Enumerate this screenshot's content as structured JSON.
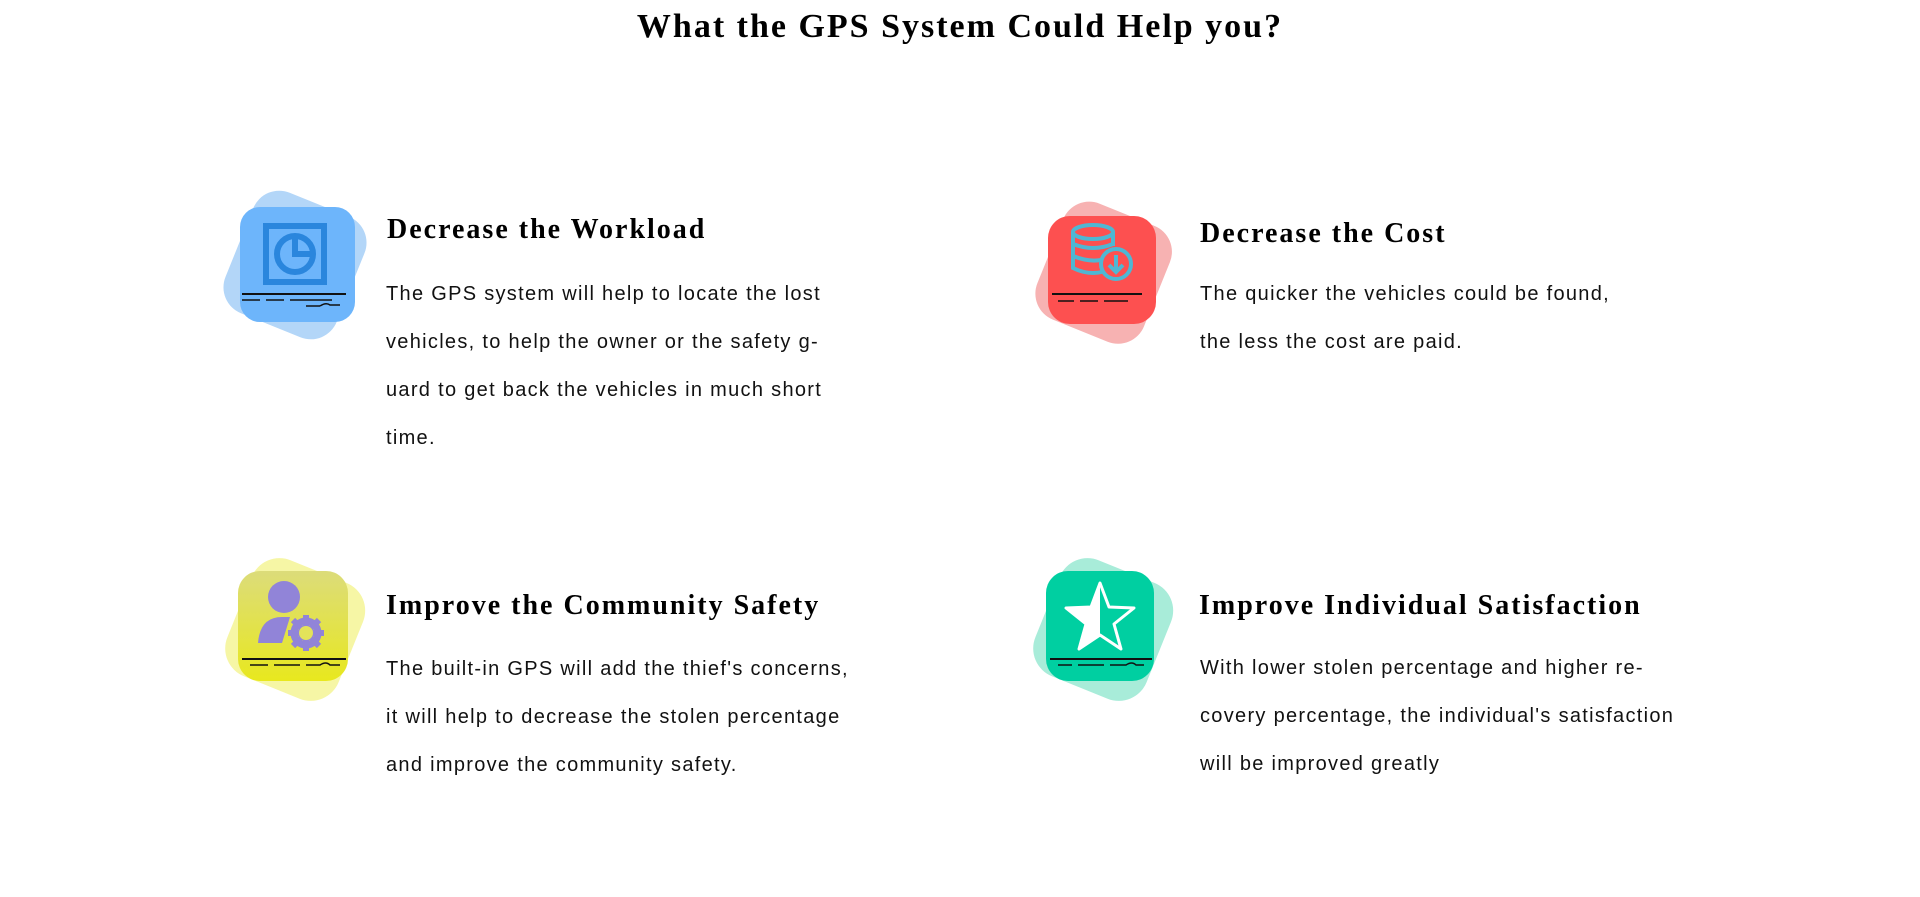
{
  "page": {
    "title": "What the GPS System Could Help you?"
  },
  "features": [
    {
      "title": "Decrease the Workload",
      "icon": "pie-chart-icon",
      "color": "#6db5fb",
      "lines": [
        "The GPS system will help to locate the lost",
        "vehicles, to help the owner or the safety g-",
        "uard to get back the vehicles in much short",
        "time."
      ]
    },
    {
      "title": "Decrease the Cost",
      "icon": "database-download-icon",
      "color": "#fd5050",
      "lines": [
        "The quicker the vehicles could be found,",
        "the less the cost are paid."
      ]
    },
    {
      "title": "Improve the Community Safety",
      "icon": "user-settings-icon",
      "color": "#e8e831",
      "lines": [
        "The built-in GPS will add the thief's concerns,",
        "it will help to decrease the stolen percentage",
        "and improve the community safety."
      ]
    },
    {
      "title": "Improve Individual Satisfaction",
      "icon": "half-star-icon",
      "color": "#00cfa1",
      "lines": [
        "With lower stolen percentage and higher re-",
        "covery percentage, the individual's satisfaction",
        "will be improved greatly"
      ]
    }
  ]
}
